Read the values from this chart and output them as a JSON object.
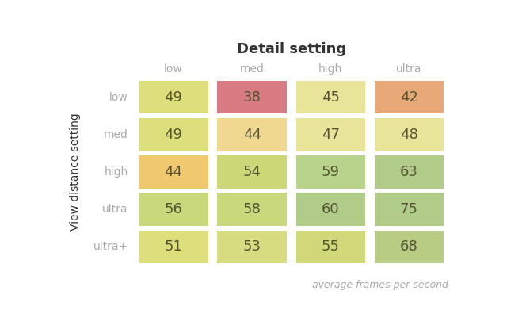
{
  "title": "Detail setting",
  "ylabel": "View distance setting",
  "footnote": "average frames per second",
  "col_labels": [
    "low",
    "med",
    "high",
    "ultra"
  ],
  "row_labels": [
    "low",
    "med",
    "high",
    "ultra",
    "ultra+"
  ],
  "values": [
    [
      49,
      38,
      45,
      42
    ],
    [
      49,
      44,
      47,
      48
    ],
    [
      44,
      54,
      59,
      63
    ],
    [
      56,
      58,
      60,
      75
    ],
    [
      51,
      53,
      55,
      68
    ]
  ],
  "colors": [
    [
      "#dde07a",
      "#d97b82",
      "#e8e49a",
      "#e8a878"
    ],
    [
      "#dde07a",
      "#f0d890",
      "#e8e49a",
      "#e8e49a"
    ],
    [
      "#f0c870",
      "#ccd878",
      "#b8d48a",
      "#b0cc88"
    ],
    [
      "#c8d87a",
      "#c8d87a",
      "#b0cc88",
      "#b0cc88"
    ],
    [
      "#dde07a",
      "#d8dc80",
      "#d0d87a",
      "#b8cc84"
    ]
  ],
  "title_fontsize": 13,
  "label_fontsize": 10,
  "value_fontsize": 13,
  "footnote_fontsize": 9,
  "label_color": "#aaaaaa",
  "value_color": "#555533",
  "footnote_color": "#aaaaaa",
  "background_color": "#ffffff",
  "title_color": "#333333",
  "ylabel_color": "#333333"
}
